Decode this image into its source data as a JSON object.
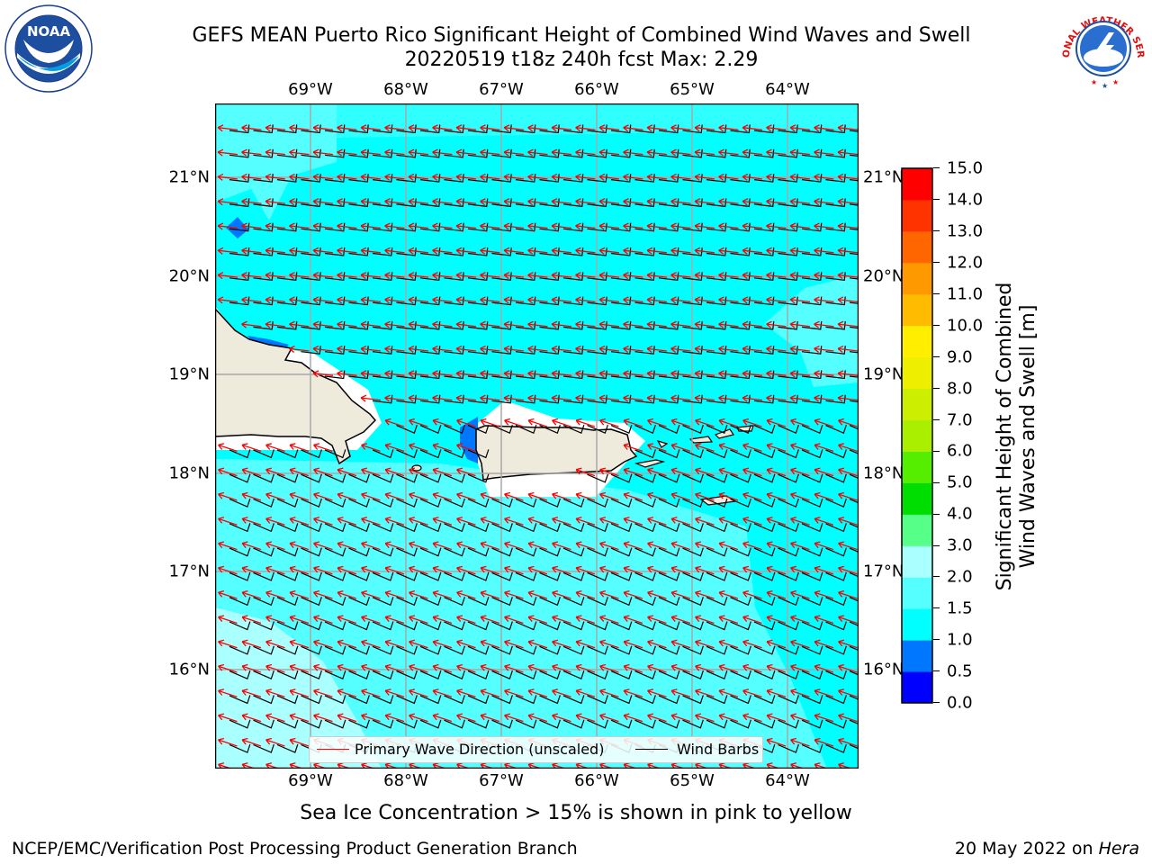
{
  "header": {
    "title_line1": "GEFS MEAN Puerto Rico Significant Height of Combined Wind Waves and Swell",
    "title_line2": "20220519 t18z 240h fcst   Max: 2.29"
  },
  "logos": {
    "noaa": {
      "text": "NOAA",
      "ring_text": "NATIONAL OCEANIC AND ATMOSPHERIC ADMINISTRATION · U.S. DEPARTMENT OF COMMERCE",
      "icon": "noaa-logo"
    },
    "nws": {
      "ring_text": "NATIONAL WEATHER SERVICE",
      "icon": "nws-logo"
    }
  },
  "map": {
    "lon_ticks": [
      "69°W",
      "68°W",
      "67°W",
      "66°W",
      "65°W",
      "64°W"
    ],
    "lat_ticks": [
      "21°N",
      "20°N",
      "19°N",
      "18°N",
      "17°N",
      "16°N"
    ],
    "extent": {
      "lon_min": -70.0,
      "lon_max": -63.27,
      "lat_min": 15.0,
      "lat_max": 21.75
    },
    "ocean_color": "#00ffff",
    "light_sea_color": "#55ffff",
    "land_color": "#efebdc",
    "min_color": "#0077ff",
    "wave_arrow_color": "#ff0000",
    "barb_color": "#000000"
  },
  "colorbar": {
    "label_line1": "Significant Height of Combined",
    "label_line2": "Wind Waves and Swell [m]",
    "bins": [
      {
        "lo": 0.0,
        "hi": 0.5,
        "color": "#0000ff"
      },
      {
        "lo": 0.5,
        "hi": 1.0,
        "color": "#0077ff"
      },
      {
        "lo": 1.0,
        "hi": 1.5,
        "color": "#00ffff"
      },
      {
        "lo": 1.5,
        "hi": 2.0,
        "color": "#55ffff"
      },
      {
        "lo": 2.0,
        "hi": 3.0,
        "color": "#aaffff"
      },
      {
        "lo": 3.0,
        "hi": 4.0,
        "color": "#55ff88"
      },
      {
        "lo": 4.0,
        "hi": 5.0,
        "color": "#00dd00"
      },
      {
        "lo": 5.0,
        "hi": 6.0,
        "color": "#55ee00"
      },
      {
        "lo": 6.0,
        "hi": 7.0,
        "color": "#aaee00"
      },
      {
        "lo": 7.0,
        "hi": 8.0,
        "color": "#ccee00"
      },
      {
        "lo": 8.0,
        "hi": 9.0,
        "color": "#eeee00"
      },
      {
        "lo": 9.0,
        "hi": 10.0,
        "color": "#ffee00"
      },
      {
        "lo": 10.0,
        "hi": 11.0,
        "color": "#ffbb00"
      },
      {
        "lo": 11.0,
        "hi": 12.0,
        "color": "#ff9900"
      },
      {
        "lo": 12.0,
        "hi": 13.0,
        "color": "#ff6600"
      },
      {
        "lo": 13.0,
        "hi": 14.0,
        "color": "#ff3300"
      },
      {
        "lo": 14.0,
        "hi": 15.0,
        "color": "#ff0000"
      }
    ],
    "tick_labels": [
      "0.0",
      "0.5",
      "1.0",
      "1.5",
      "2.0",
      "3.0",
      "4.0",
      "5.0",
      "6.0",
      "7.0",
      "8.0",
      "9.0",
      "10.0",
      "11.0",
      "12.0",
      "13.0",
      "14.0",
      "15.0"
    ]
  },
  "legend": {
    "wave_label": "Primary Wave Direction (unscaled)",
    "barb_label": "Wind Barbs"
  },
  "note": "Sea Ice Concentration > 15% is shown in pink to yellow",
  "footer": {
    "left": "NCEP/EMC/Verification Post Processing Product Generation Branch",
    "right_prefix": "20 May 2022 on ",
    "right_host": "Hera"
  }
}
